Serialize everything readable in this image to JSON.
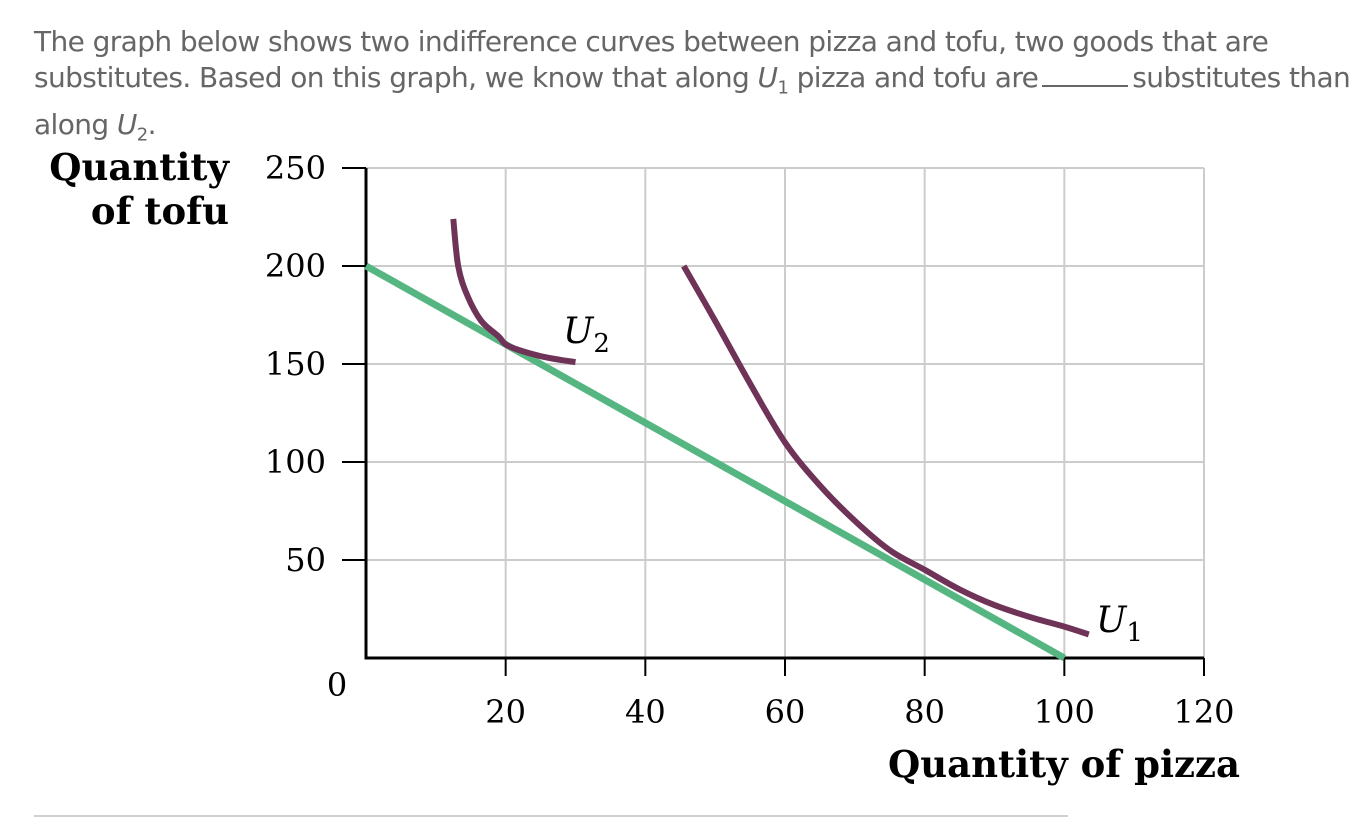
{
  "question": {
    "line1": "The graph below shows two indifference curves between pizza and tofu, two goods that are",
    "line2_a": "substitutes. Based on this graph, we know that along ",
    "line2_u": "U",
    "line2_sub": "1",
    "line2_b": " pizza and tofu are",
    "line2_c": "substitutes than",
    "line3_a": "along ",
    "line3_u": "U",
    "line3_sub": "2",
    "line3_b": "."
  },
  "colors": {
    "budget_line": "#56b681",
    "indifference_curve": "#6f3358",
    "grid": "#cccccc",
    "axis": "#000000"
  },
  "chart_data": {
    "type": "line",
    "xlabel": "Quantity of pizza",
    "ylabel_line1": "Quantity",
    "ylabel_line2": "of tofu",
    "xlim": [
      0,
      120
    ],
    "ylim": [
      0,
      250
    ],
    "x_ticks": [
      20,
      40,
      60,
      80,
      100,
      120
    ],
    "y_ticks": [
      50,
      100,
      150,
      200,
      250
    ],
    "origin_label": "0",
    "grid": true,
    "series": [
      {
        "name": "budget line",
        "x": [
          0,
          100
        ],
        "y": [
          200,
          0
        ]
      },
      {
        "name": "U2",
        "label_letter": "U",
        "label_sub": "2",
        "x": [
          12.5,
          13.2,
          14.5,
          16.5,
          19,
          20,
          22,
          25,
          28,
          30
        ],
        "y": [
          224,
          200,
          185,
          172,
          164,
          160,
          157,
          154,
          152,
          151
        ]
      },
      {
        "name": "U1",
        "label_letter": "U",
        "label_sub": "1",
        "x": [
          45.5,
          50,
          55,
          60,
          65,
          70,
          75,
          80,
          85,
          90,
          95,
          100,
          103.5
        ],
        "y": [
          200,
          172,
          140,
          110,
          88,
          70,
          55,
          45,
          35,
          27,
          21,
          16,
          12
        ]
      }
    ]
  }
}
